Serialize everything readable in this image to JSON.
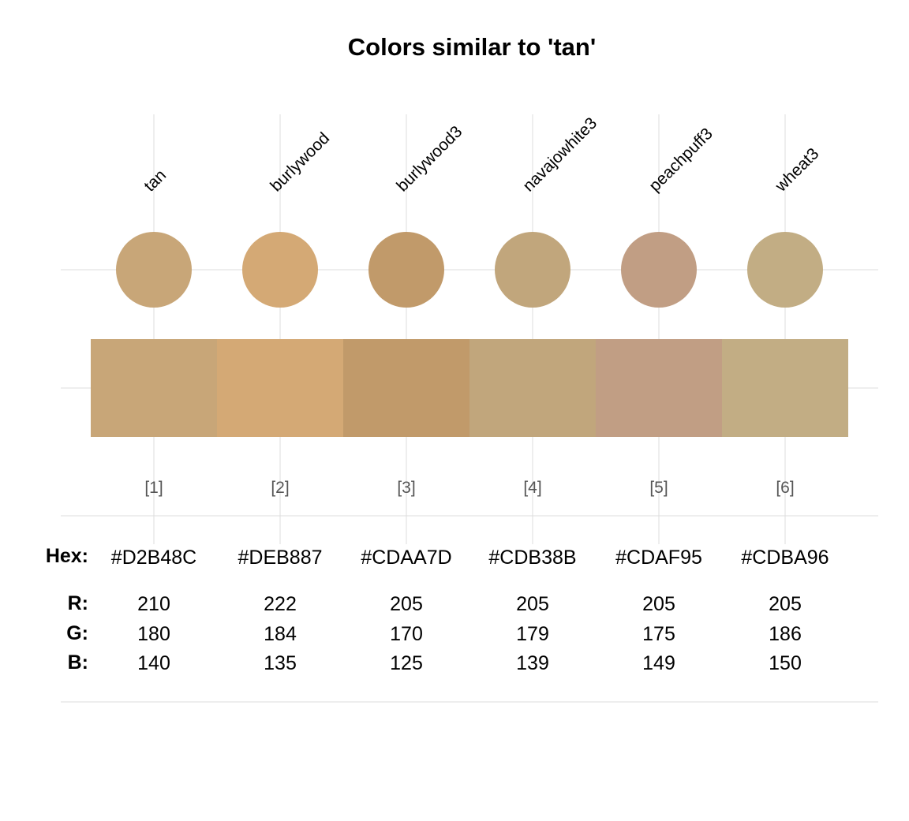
{
  "chart_data": {
    "type": "table",
    "title": "Colors similar to 'tan'",
    "grid": true,
    "names": [
      "tan",
      "burlywood",
      "burlywood3",
      "navajowhite3",
      "peachpuff3",
      "wheat3"
    ],
    "indices": [
      "[1]",
      "[2]",
      "[3]",
      "[4]",
      "[5]",
      "[6]"
    ],
    "hex": [
      "#D2B48C",
      "#DEB887",
      "#CDAA7D",
      "#CDB38B",
      "#CDAF95",
      "#CDBA96"
    ],
    "rendered_colors": [
      "#C8A678",
      "#D4A975",
      "#C19A6A",
      "#C1A67C",
      "#C19E84",
      "#C2AD84"
    ],
    "R": [
      210,
      222,
      205,
      205,
      205,
      205
    ],
    "G": [
      180,
      184,
      170,
      179,
      175,
      186
    ],
    "B": [
      140,
      135,
      125,
      139,
      149,
      150
    ],
    "row_labels": {
      "hex": "Hex:",
      "r": "R:",
      "g": "G:",
      "b": "B:"
    }
  }
}
